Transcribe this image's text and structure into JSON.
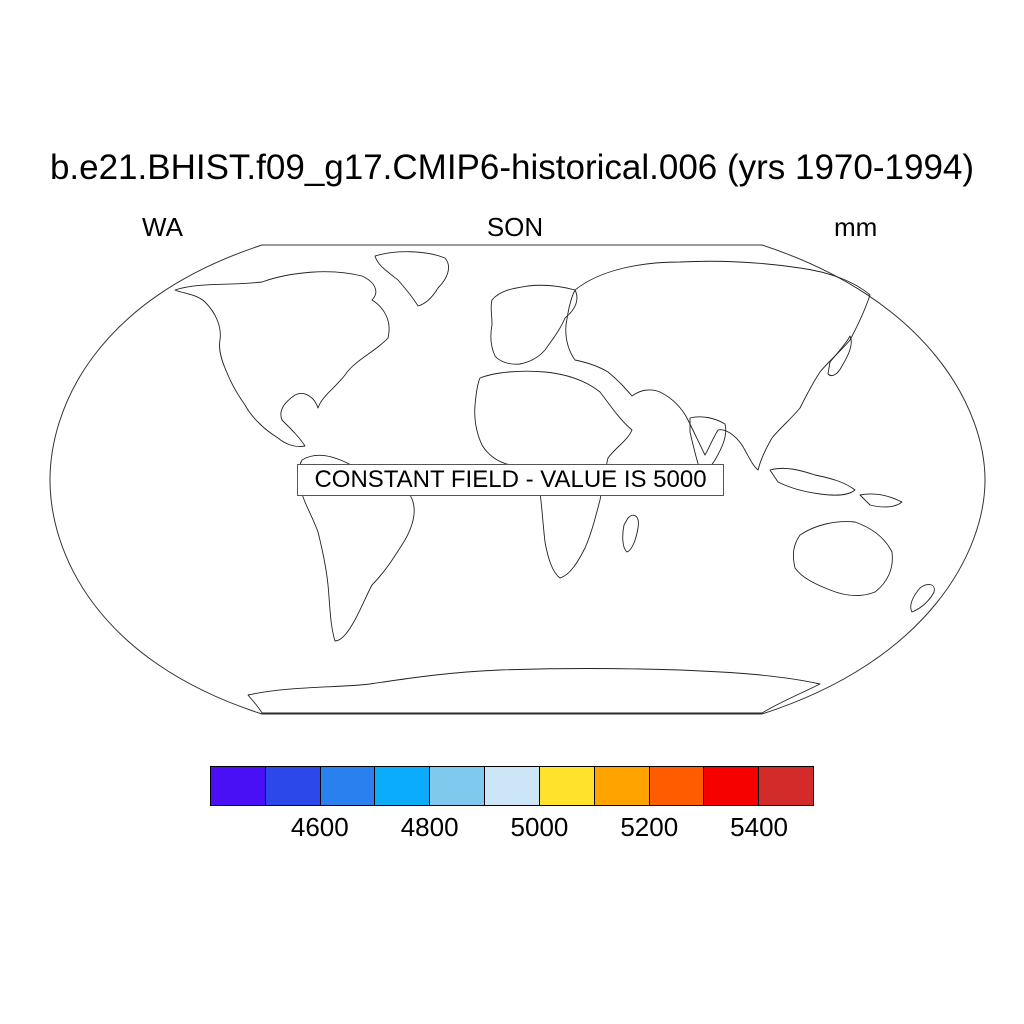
{
  "title": "b.e21.BHIST.f09_g17.CMIP6-historical.006 (yrs 1970-1994)",
  "left_string": "WA",
  "center_string": "SON",
  "right_string": "mm",
  "message": "CONSTANT FIELD - VALUE IS 5000",
  "projection": "Robinson",
  "colorbar": {
    "colors": [
      "#4a10f5",
      "#2c48ea",
      "#2a80ee",
      "#0aacfb",
      "#7ecaef",
      "#cce6f8",
      "#ffe22c",
      "#ffa300",
      "#ff5c00",
      "#f60000",
      "#d32a2a"
    ],
    "labels": [
      "4600",
      "4800",
      "5000",
      "5200",
      "5400"
    ]
  }
}
